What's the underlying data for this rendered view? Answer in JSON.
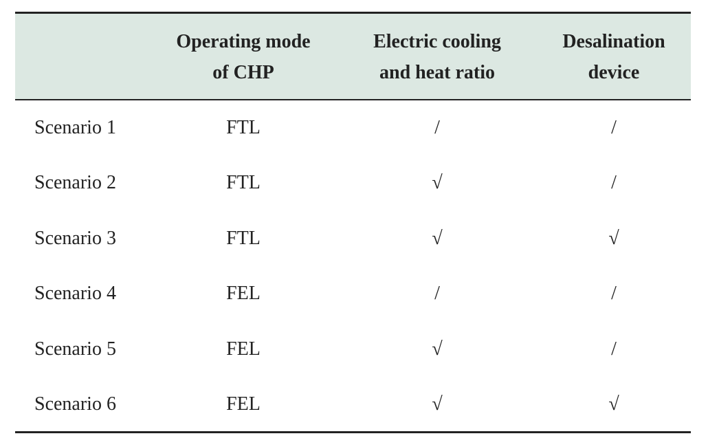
{
  "table": {
    "header": [
      [
        "Operating mode",
        "of CHP"
      ],
      [
        "Electric cooling",
        "and heat ratio"
      ],
      [
        "Desalination",
        "device"
      ]
    ],
    "rows": [
      [
        "Scenario 1",
        "FTL",
        "/",
        "/"
      ],
      [
        "Scenario 2",
        "FTL",
        "√",
        "/"
      ],
      [
        "Scenario 3",
        "FTL",
        "√",
        "√"
      ],
      [
        "Scenario 4",
        "FEL",
        "/",
        "/"
      ],
      [
        "Scenario 5",
        "FEL",
        "√",
        "/"
      ],
      [
        "Scenario 6",
        "FEL",
        "√",
        "√"
      ]
    ]
  }
}
